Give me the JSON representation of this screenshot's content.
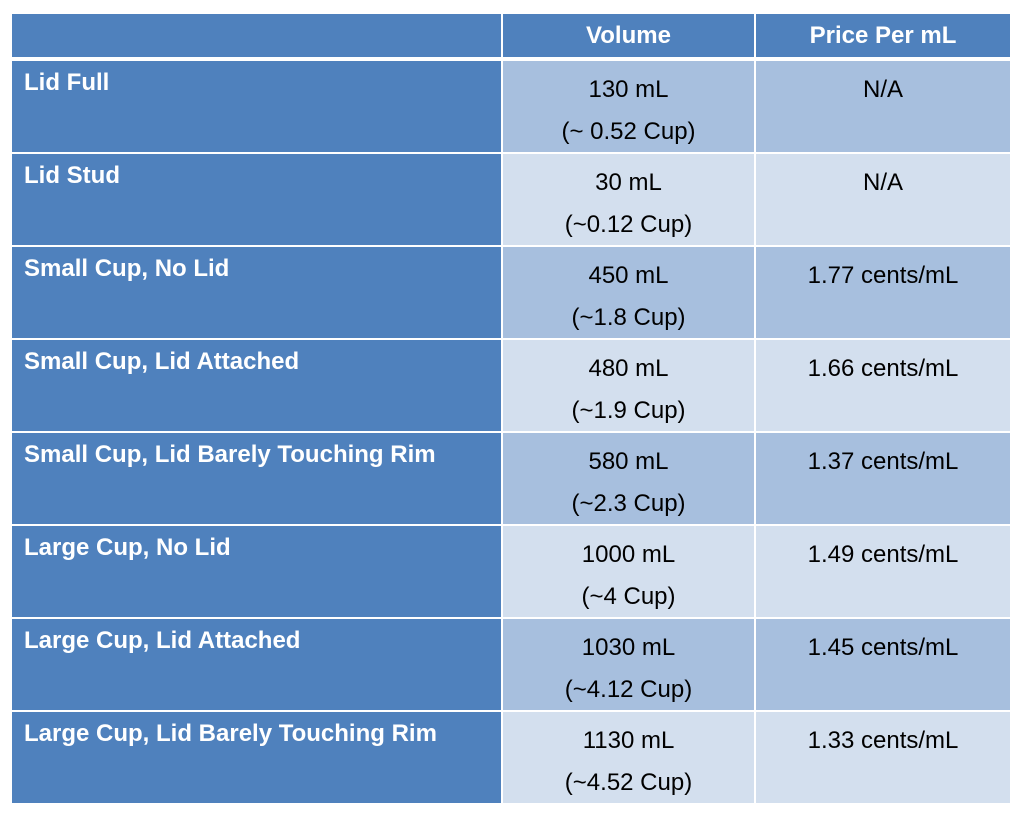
{
  "header": {
    "col0": "",
    "volume": "Volume",
    "price": "Price Per mL"
  },
  "rows": [
    {
      "label": "Lid Full",
      "volume": "130 mL",
      "cups": "(~ 0.52 Cup)",
      "price": "N/A"
    },
    {
      "label": "Lid Stud",
      "volume": "30 mL",
      "cups": "(~0.12 Cup)",
      "price": "N/A"
    },
    {
      "label": "Small Cup, No Lid",
      "volume": "450 mL",
      "cups": "(~1.8 Cup)",
      "price": "1.77 cents/mL"
    },
    {
      "label": "Small Cup, Lid Attached",
      "volume": "480 mL",
      "cups": "(~1.9 Cup)",
      "price": "1.66 cents/mL"
    },
    {
      "label": "Small Cup, Lid Barely Touching Rim",
      "volume": "580 mL",
      "cups": "(~2.3 Cup)",
      "price": "1.37 cents/mL"
    },
    {
      "label": "Large Cup, No Lid",
      "volume": "1000 mL",
      "cups": "(~4 Cup)",
      "price": "1.49 cents/mL"
    },
    {
      "label": "Large Cup, Lid Attached",
      "volume": "1030 mL",
      "cups": "(~4.12 Cup)",
      "price": "1.45 cents/mL"
    },
    {
      "label": "Large Cup, Lid Barely Touching Rim",
      "volume": "1130 mL",
      "cups": "(~4.52 Cup)",
      "price": "1.33 cents/mL"
    }
  ],
  "colors": {
    "header_bg": "#4f81bd",
    "row_dark": "#a7bfde",
    "row_light": "#d3dfee",
    "header_text": "#ffffff"
  }
}
